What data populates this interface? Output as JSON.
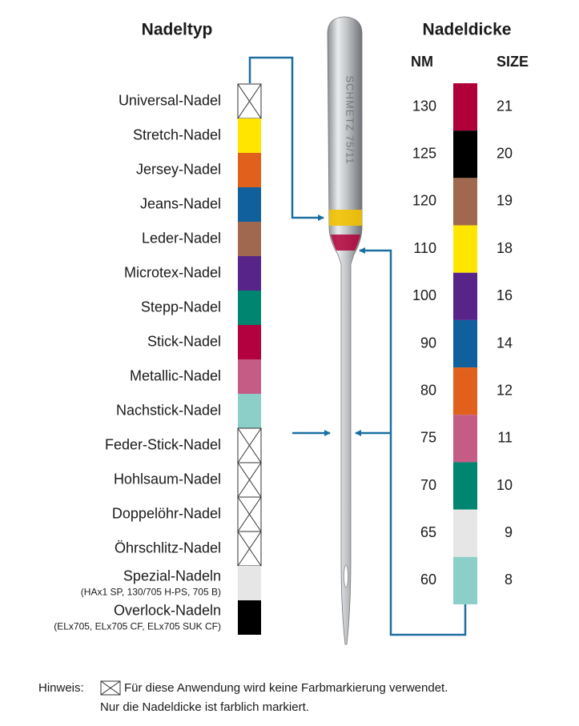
{
  "left": {
    "title": "Nadeltyp",
    "rows": [
      {
        "label": "Universal-Nadel"
      },
      {
        "label": "Stretch-Nadel",
        "color": "#ffe600"
      },
      {
        "label": "Jersey-Nadel",
        "color": "#e0601c"
      },
      {
        "label": "Jeans-Nadel",
        "color": "#11609e"
      },
      {
        "label": "Leder-Nadel",
        "color": "#a0694f"
      },
      {
        "label": "Microtex-Nadel",
        "color": "#57258a"
      },
      {
        "label": "Stepp-Nadel",
        "color": "#008670"
      },
      {
        "label": "Stick-Nadel",
        "color": "#b3003f"
      },
      {
        "label": "Metallic-Nadel",
        "color": "#c45c85"
      },
      {
        "label": "Nachstick-Nadel",
        "color": "#8ccfc8"
      },
      {
        "label": "Feder-Stick-Nadel"
      },
      {
        "label": "Hohlsaum-Nadel"
      },
      {
        "label": "Doppelöhr-Nadel"
      },
      {
        "label": "Öhrschlitz-Nadel"
      },
      {
        "label": "Spezial-Nadeln",
        "sublabel": "(HAx1 SP, 130/705 H-PS, 705 B)",
        "color": "#e6e6e6"
      },
      {
        "label": "Overlock-Nadeln",
        "sublabel": "(ELx705, ELx705 CF, ELx705 SUK CF)",
        "color": "#000000"
      }
    ]
  },
  "right": {
    "title": "Nadeldicke",
    "nm_header": "NM",
    "size_header": "SIZE",
    "rows": [
      {
        "nm": 130,
        "size": 21,
        "color": "#b0003a"
      },
      {
        "nm": 125,
        "size": 20,
        "color": "#000000"
      },
      {
        "nm": 120,
        "size": 19,
        "color": "#a0694f"
      },
      {
        "nm": 110,
        "size": 18,
        "color": "#ffe600"
      },
      {
        "nm": 100,
        "size": 16,
        "color": "#57258a"
      },
      {
        "nm": 90,
        "size": 14,
        "color": "#11609e"
      },
      {
        "nm": 80,
        "size": 12,
        "color": "#e0601c"
      },
      {
        "nm": 75,
        "size": 11,
        "color": "#c45c85"
      },
      {
        "nm": 70,
        "size": 10,
        "color": "#008670"
      },
      {
        "nm": 65,
        "size": 9,
        "color": "#e6e6e6"
      },
      {
        "nm": 60,
        "size": 8,
        "color": "#8ccfc8"
      }
    ]
  },
  "needle": {
    "label": "SCHMETZ 75/11"
  },
  "footer": {
    "prefix": "Hinweis:",
    "line1": "Für diese Anwendung wird keine Farbmarkierung verwendet.",
    "line2": "Nur die Nadeldicke ist farblich markiert."
  }
}
